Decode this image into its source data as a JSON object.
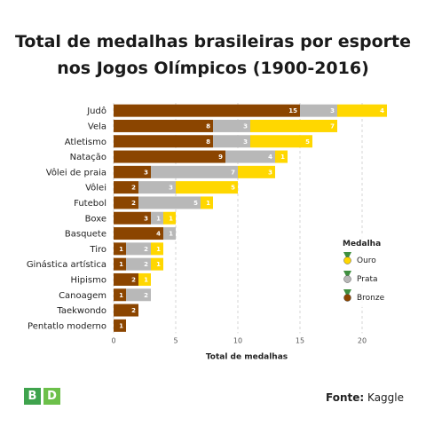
{
  "title_lines": [
    "Total de medalhas brasileiras por esporte",
    "nos Jogos Olímpicos (1900-2016)"
  ],
  "logo": {
    "letters": [
      "B",
      "D"
    ],
    "colors": [
      "#3fa34d",
      "#6cc04a"
    ]
  },
  "source": {
    "label": "Fonte:",
    "value": "Kaggle"
  },
  "chart_data": {
    "type": "bar",
    "orientation": "horizontal",
    "stacked": true,
    "title": "Total de medalhas brasileiras por esporte nos Jogos Olímpicos (1900-2016)",
    "xlabel": "Total de medalhas",
    "ylabel": "",
    "xlim": [
      0,
      22
    ],
    "xticks": [
      0,
      5,
      10,
      15,
      20
    ],
    "grid": "vertical-dashed",
    "categories": [
      "Judô",
      "Vela",
      "Atletismo",
      "Natação",
      "Vôlei de praia",
      "Vôlei",
      "Futebol",
      "Boxe",
      "Basquete",
      "Tiro",
      "Ginástica artística",
      "Hipismo",
      "Canoagem",
      "Taekwondo",
      "Pentatlo moderno"
    ],
    "series": [
      {
        "name": "Bronze",
        "color": "#8b4500",
        "label_color": "#ffffff",
        "values": [
          15,
          8,
          8,
          9,
          3,
          2,
          2,
          3,
          4,
          1,
          1,
          2,
          1,
          2,
          1
        ]
      },
      {
        "name": "Prata",
        "color": "#b8b8b8",
        "label_color": "#ffffff",
        "values": [
          3,
          3,
          3,
          4,
          7,
          3,
          5,
          1,
          1,
          2,
          2,
          0,
          2,
          0,
          0
        ]
      },
      {
        "name": "Ouro",
        "color": "#ffd700",
        "label_color": "#ffffff",
        "values": [
          4,
          7,
          5,
          1,
          3,
          5,
          1,
          1,
          0,
          1,
          1,
          1,
          0,
          0,
          0
        ]
      }
    ],
    "legend": {
      "title": "Medalha",
      "placement": "right",
      "entries": [
        {
          "name": "Ouro",
          "color": "#ffd700"
        },
        {
          "name": "Prata",
          "color": "#b8b8b8"
        },
        {
          "name": "Bronze",
          "color": "#8b4500"
        }
      ]
    }
  }
}
